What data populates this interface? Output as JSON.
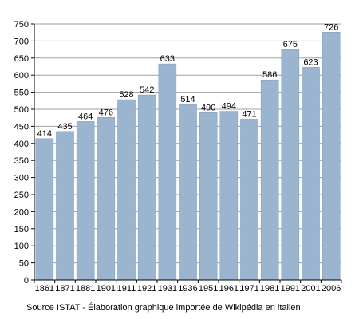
{
  "chart_data": {
    "type": "bar",
    "categories": [
      "1861",
      "1871",
      "1881",
      "1901",
      "1911",
      "1921",
      "1931",
      "1936",
      "1951",
      "1961",
      "1971",
      "1981",
      "1991",
      "2001",
      "2006"
    ],
    "values": [
      414,
      435,
      464,
      476,
      528,
      542,
      633,
      514,
      490,
      494,
      471,
      586,
      675,
      623,
      726
    ],
    "data_labels": [
      "414",
      "435",
      "464",
      "476",
      "528",
      "542",
      "633",
      "514",
      "490",
      "494",
      "471",
      "586",
      "675",
      "623",
      "726"
    ],
    "ylim": [
      0,
      750
    ],
    "yticks": [
      0,
      50,
      100,
      150,
      200,
      250,
      300,
      350,
      400,
      450,
      500,
      550,
      600,
      650,
      700,
      750
    ],
    "ytick_labels": [
      "0",
      "50",
      "100",
      "150",
      "200",
      "250",
      "300",
      "350",
      "400",
      "450",
      "500",
      "550",
      "600",
      "650",
      "700",
      "750"
    ],
    "grid": true,
    "colors": {
      "bar": "#9bb5d0",
      "bar_edge": "#7f9ab8",
      "grid": "#a0a0a0",
      "plot_bg": "#ffffff"
    }
  },
  "source_text": "Source ISTAT - Élaboration graphique importée de Wikipédia en italien"
}
